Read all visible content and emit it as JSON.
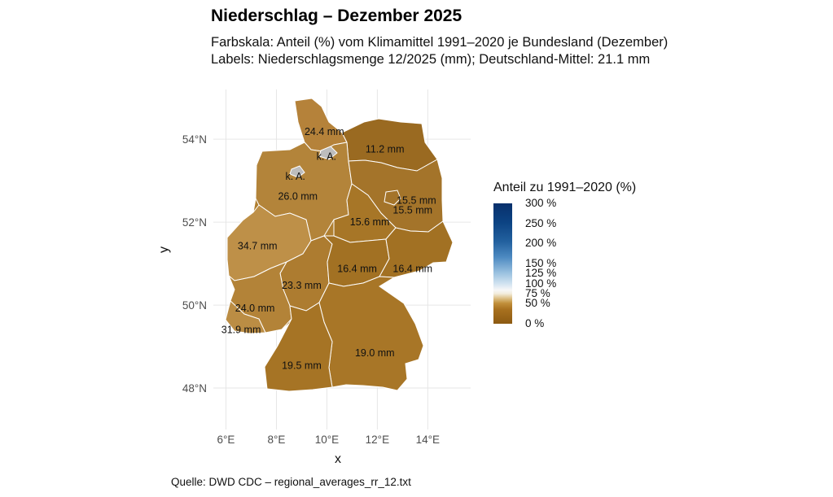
{
  "title": "Niederschlag – Dezember 2025",
  "subtitle_line1": "Farbskala: Anteil (%) vom Klimamittel 1991–2020 je Bundesland (Dezember)",
  "subtitle_line2": "Labels: Niederschlagsmenge 12/2025 (mm); Deutschland-Mittel: 21.1 mm",
  "caption": "Quelle: DWD CDC – regional_averages_rr_12.txt",
  "colors": {
    "state_border": "#ffffff",
    "grid": "#e6e6e6",
    "missing": "#bdbdbd"
  },
  "chart_data": {
    "type": "choropleth",
    "xlabel": "x",
    "ylabel": "y",
    "xticks": [
      {
        "value": 6,
        "label": "6°E"
      },
      {
        "value": 8,
        "label": "8°E"
      },
      {
        "value": 10,
        "label": "10°E"
      },
      {
        "value": 12,
        "label": "12°E"
      },
      {
        "value": 14,
        "label": "14°E"
      }
    ],
    "yticks": [
      {
        "value": 48,
        "label": "48°N"
      },
      {
        "value": 50,
        "label": "50°N"
      },
      {
        "value": 52,
        "label": "52°N"
      },
      {
        "value": 54,
        "label": "54°N"
      }
    ],
    "xlim": [
      5.5,
      15.7
    ],
    "ylim": [
      47.0,
      55.2
    ],
    "grid": true,
    "legend": {
      "title": "Anteil zu 1991–2020 (%)",
      "position": "right",
      "range": [
        0,
        300
      ],
      "ticks": [
        {
          "value": 0,
          "label": "0 %"
        },
        {
          "value": 50,
          "label": "50 %"
        },
        {
          "value": 75,
          "label": "75 %"
        },
        {
          "value": 100,
          "label": "100 %"
        },
        {
          "value": 125,
          "label": "125 %"
        },
        {
          "value": 150,
          "label": "150 %"
        },
        {
          "value": 200,
          "label": "200 %"
        },
        {
          "value": 250,
          "label": "250 %"
        },
        {
          "value": 300,
          "label": "300 %"
        }
      ]
    },
    "labels": [
      {
        "name": "Schleswig-Holstein",
        "text": "24.4 mm",
        "lon": 9.9,
        "lat": 54.18
      },
      {
        "name": "Mecklenburg-Vorpommern",
        "text": "11.2 mm",
        "lon": 12.3,
        "lat": 53.76
      },
      {
        "name": "Hamburg",
        "text": "k. A.",
        "lon": 9.98,
        "lat": 53.58
      },
      {
        "name": "Bremen",
        "text": "k. A.",
        "lon": 8.75,
        "lat": 53.1
      },
      {
        "name": "Niedersachsen",
        "text": "26.0 mm",
        "lon": 8.85,
        "lat": 52.62
      },
      {
        "name": "Brandenburg",
        "text": "15.5 mm",
        "lon": 13.55,
        "lat": 52.52
      },
      {
        "name": "Berlin",
        "text": "15.5 mm",
        "lon": 13.4,
        "lat": 52.29
      },
      {
        "name": "Sachsen-Anhalt",
        "text": "15.6 mm",
        "lon": 11.7,
        "lat": 52.0
      },
      {
        "name": "Nordrhein-Westfalen",
        "text": "34.7 mm",
        "lon": 7.25,
        "lat": 51.42
      },
      {
        "name": "Thüringen",
        "text": "16.4 mm",
        "lon": 11.2,
        "lat": 50.87
      },
      {
        "name": "Sachsen",
        "text": "16.4 mm",
        "lon": 13.4,
        "lat": 50.87
      },
      {
        "name": "Hessen",
        "text": "23.3 mm",
        "lon": 9.0,
        "lat": 50.47
      },
      {
        "name": "Rheinland-Pfalz",
        "text": "24.0 mm",
        "lon": 7.15,
        "lat": 49.92
      },
      {
        "name": "Saarland",
        "text": "31.9 mm",
        "lon": 6.6,
        "lat": 49.4
      },
      {
        "name": "Bayern",
        "text": "19.0 mm",
        "lon": 11.9,
        "lat": 48.84
      },
      {
        "name": "Baden-Württemberg",
        "text": "19.5 mm",
        "lon": 9.0,
        "lat": 48.54
      }
    ]
  }
}
